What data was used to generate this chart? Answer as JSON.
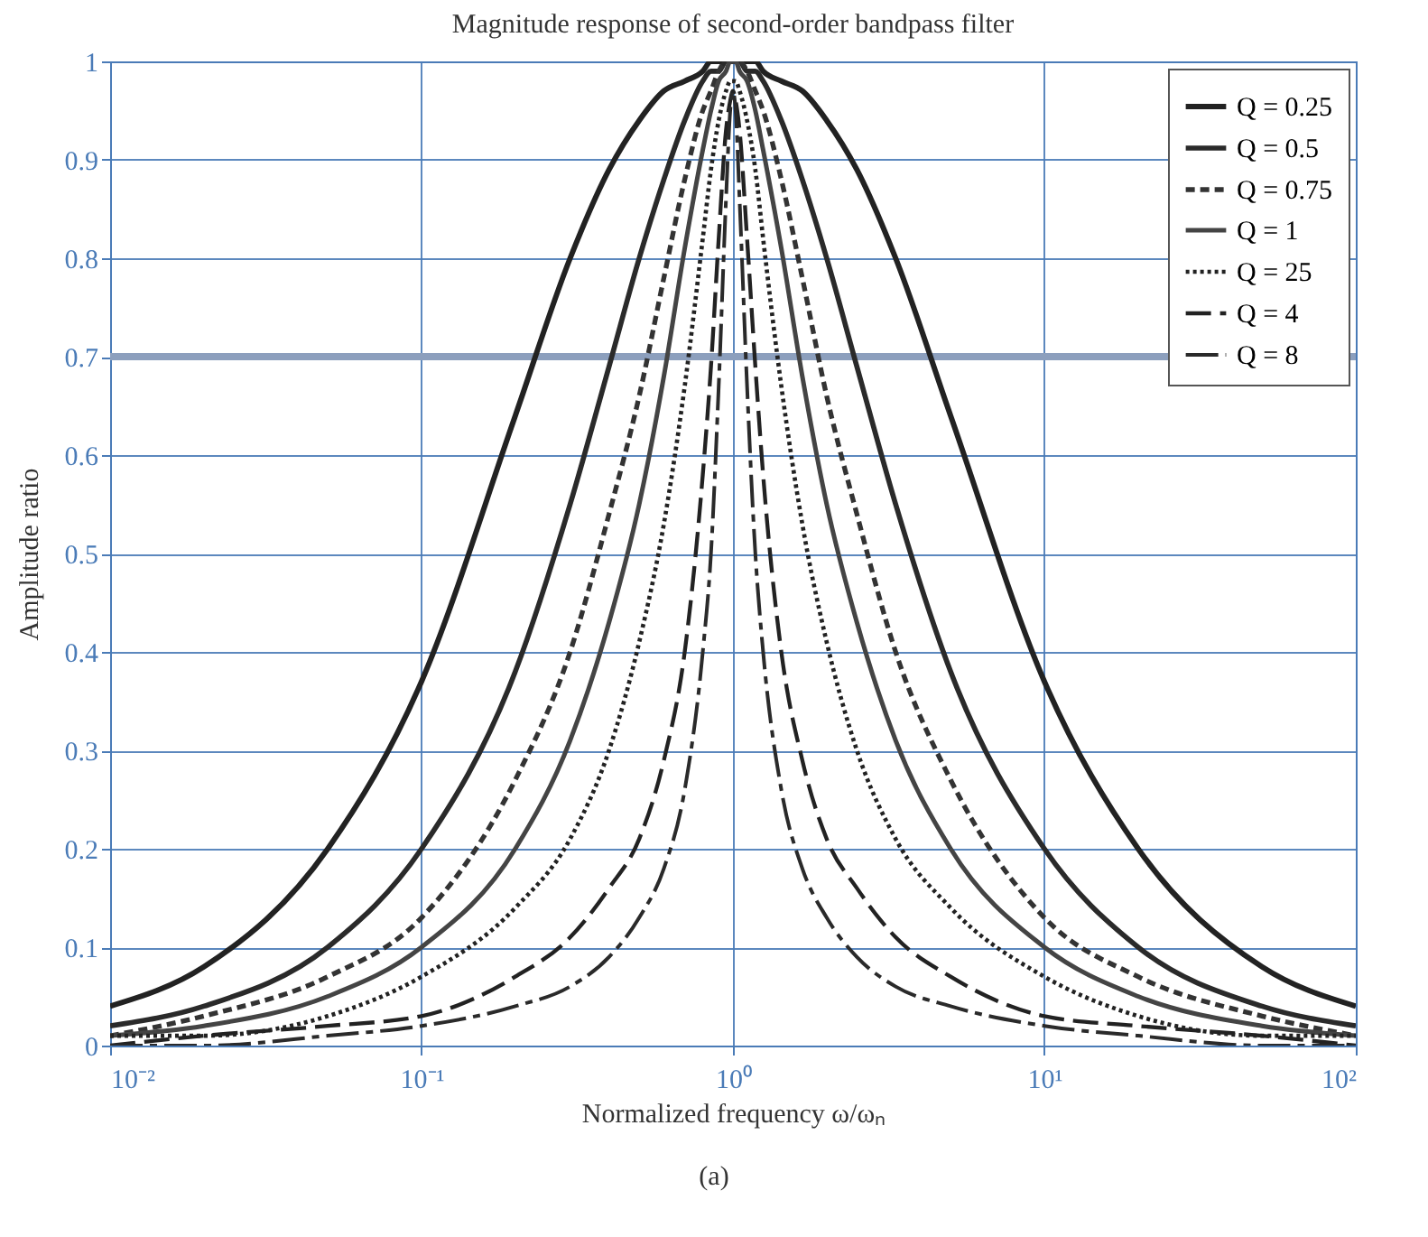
{
  "chart_data": {
    "type": "line",
    "title": "Magnitude response of second-order bandpass filter",
    "xlabel": "Normalized frequency ω/ωₙ",
    "ylabel": "Amplitude ratio",
    "annotations": [
      "(a)"
    ],
    "x": [
      0.01,
      0.02,
      0.05,
      0.1,
      0.2,
      0.3,
      0.4,
      0.5,
      0.6,
      0.7,
      0.8,
      0.85,
      0.9,
      0.95,
      0.98,
      1,
      1.02,
      1.05,
      1.11,
      1.18,
      1.25,
      1.43,
      1.67,
      2,
      2.5,
      3.33,
      5,
      10,
      20,
      50,
      100
    ],
    "series": [
      {
        "name": "Q = 0.25",
        "color": "#222222",
        "line_style": "solid",
        "values": [
          0.04,
          0.08,
          0.2,
          0.37,
          0.64,
          0.8,
          0.89,
          0.94,
          0.97,
          0.98,
          0.99,
          1,
          1,
          1,
          1,
          1,
          1,
          1,
          1,
          1,
          0.99,
          0.98,
          0.97,
          0.94,
          0.89,
          0.8,
          0.64,
          0.37,
          0.2,
          0.08,
          0.04
        ]
      },
      {
        "name": "Q = 0.5",
        "color": "#2a2a2a",
        "line_style": "solid",
        "values": [
          0.02,
          0.04,
          0.1,
          0.2,
          0.38,
          0.55,
          0.69,
          0.8,
          0.88,
          0.94,
          0.98,
          0.99,
          0.99,
          1,
          1,
          1,
          1,
          1,
          0.99,
          0.99,
          0.98,
          0.94,
          0.88,
          0.8,
          0.69,
          0.55,
          0.38,
          0.2,
          0.1,
          0.04,
          0.02
        ]
      },
      {
        "name": "Q = 0.75",
        "color": "#333333",
        "line_style": "dashed",
        "values": [
          0.01,
          0.03,
          0.07,
          0.13,
          0.27,
          0.4,
          0.54,
          0.66,
          0.78,
          0.88,
          0.95,
          0.97,
          0.99,
          1,
          1,
          1,
          1,
          1,
          0.99,
          0.97,
          0.95,
          0.88,
          0.78,
          0.66,
          0.54,
          0.4,
          0.27,
          0.13,
          0.07,
          0.03,
          0.01
        ]
      },
      {
        "name": "Q = 1",
        "color": "#444444",
        "line_style": "solid",
        "values": [
          0.01,
          0.02,
          0.05,
          0.1,
          0.2,
          0.31,
          0.43,
          0.55,
          0.68,
          0.81,
          0.91,
          0.95,
          0.98,
          0.99,
          1,
          1,
          1,
          0.99,
          0.98,
          0.95,
          0.91,
          0.81,
          0.68,
          0.55,
          0.43,
          0.31,
          0.2,
          0.1,
          0.05,
          0.02,
          0.01
        ]
      },
      {
        "name": "Q = 25",
        "color": "#222222",
        "line_style": "dotted",
        "values": [
          0.01,
          0.01,
          0.03,
          0.07,
          0.14,
          0.21,
          0.3,
          0.41,
          0.53,
          0.67,
          0.82,
          0.89,
          0.94,
          0.97,
          0.98,
          0.98,
          0.98,
          0.97,
          0.94,
          0.89,
          0.82,
          0.67,
          0.53,
          0.41,
          0.3,
          0.21,
          0.14,
          0.07,
          0.03,
          0.01,
          0.01
        ]
      },
      {
        "name": "Q = 4",
        "color": "#222222",
        "line_style": "dashed",
        "values": [
          0,
          0.01,
          0.02,
          0.03,
          0.07,
          0.11,
          0.16,
          0.21,
          0.29,
          0.4,
          0.58,
          0.69,
          0.82,
          0.93,
          0.96,
          0.97,
          0.96,
          0.93,
          0.82,
          0.69,
          0.58,
          0.4,
          0.29,
          0.21,
          0.16,
          0.11,
          0.07,
          0.03,
          0.02,
          0.01,
          0
        ]
      },
      {
        "name": "Q = 8",
        "color": "#2a2a2a",
        "line_style": "dashed",
        "values": [
          0,
          0,
          0.01,
          0.02,
          0.04,
          0.06,
          0.09,
          0.13,
          0.18,
          0.26,
          0.4,
          0.5,
          0.67,
          0.86,
          0.95,
          0.97,
          0.95,
          0.86,
          0.67,
          0.5,
          0.4,
          0.26,
          0.18,
          0.13,
          0.09,
          0.06,
          0.04,
          0.02,
          0.01,
          0,
          0
        ]
      }
    ],
    "xlim": [
      0.01,
      100
    ],
    "xticks": [
      {
        "value": 0.01,
        "label": "10⁻²"
      },
      {
        "value": 0.1,
        "label": "10⁻¹"
      },
      {
        "value": 1,
        "label": "10⁰"
      },
      {
        "value": 10,
        "label": "10¹"
      },
      {
        "value": 100,
        "label": "10²"
      }
    ],
    "ylim": [
      0,
      1
    ],
    "yticks": [
      0,
      0.1,
      0.2,
      0.3,
      0.4,
      0.5,
      0.6,
      0.7,
      0.8,
      0.9,
      1.0
    ],
    "ref_lines": [
      {
        "axis": "y",
        "value": 0.7,
        "color": "#8c9fbd"
      }
    ],
    "log": "x",
    "grid": true,
    "legend": "top right"
  }
}
